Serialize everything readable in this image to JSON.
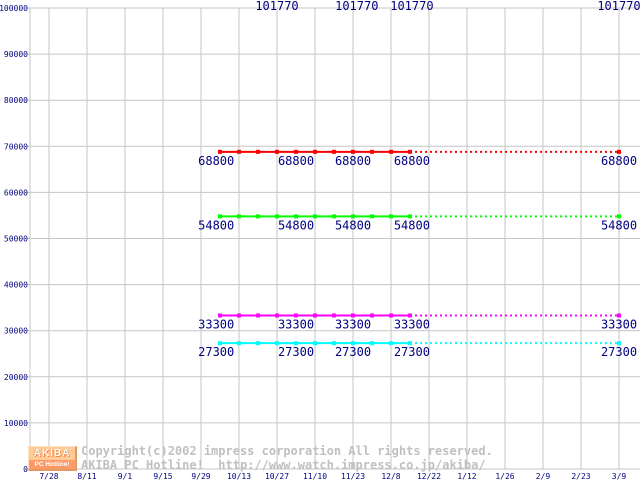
{
  "chart_data": {
    "type": "line",
    "title": "",
    "xlabel": "",
    "ylabel": "",
    "grid": true,
    "legend": "none",
    "y_axis": {
      "min": 0,
      "max": 100000,
      "tick_step": 10000,
      "tick_labels": [
        "0",
        "10000",
        "20000",
        "30000",
        "40000",
        "50000",
        "60000",
        "70000",
        "80000",
        "90000",
        "100000"
      ]
    },
    "x_axis": {
      "tick_labels": [
        "7/28",
        "8/11",
        "9/1",
        "9/15",
        "9/29",
        "10/13",
        "10/27",
        "11/10",
        "11/23",
        "12/8",
        "12/22",
        "1/12",
        "1/26",
        "2/9",
        "2/23",
        "3/9"
      ]
    },
    "series": [
      {
        "name": "price-101770",
        "label": "101770",
        "price": 101770,
        "color": "#000080",
        "line_visible": false,
        "off_scale": true,
        "label_ticks": [
          6.0,
          8.1,
          9.55,
          15.0
        ]
      },
      {
        "name": "price-68800",
        "label": "68800",
        "price": 68800,
        "color": "#ff0000",
        "line_visible": true,
        "solid_ticks": [
          4.5,
          9.5
        ],
        "dotted_ticks": [
          9.5,
          15.0
        ],
        "marker_step": 0.5,
        "label_ticks": [
          4.4,
          6.5,
          8.0,
          9.55,
          15.0
        ]
      },
      {
        "name": "price-54800",
        "label": "54800",
        "price": 54800,
        "color": "#00ff00",
        "line_visible": true,
        "solid_ticks": [
          4.5,
          9.5
        ],
        "dotted_ticks": [
          9.5,
          15.0
        ],
        "marker_step": 0.5,
        "label_ticks": [
          4.4,
          6.5,
          8.0,
          9.55,
          15.0
        ]
      },
      {
        "name": "price-33300",
        "label": "33300",
        "price": 33300,
        "color": "#ff00ff",
        "line_visible": true,
        "solid_ticks": [
          4.5,
          9.5
        ],
        "dotted_ticks": [
          9.5,
          15.0
        ],
        "marker_step": 0.5,
        "label_ticks": [
          4.4,
          6.5,
          8.0,
          9.55,
          15.0
        ]
      },
      {
        "name": "price-27300",
        "label": "27300",
        "price": 27300,
        "color": "#00ffff",
        "line_visible": true,
        "solid_ticks": [
          4.5,
          9.5
        ],
        "dotted_ticks": [
          9.5,
          15.0
        ],
        "marker_step": 0.5,
        "label_ticks": [
          4.4,
          6.5,
          8.0,
          9.55,
          15.0
        ]
      }
    ]
  },
  "colors": {
    "background": "#ffffff",
    "grid": "#c6c6c6",
    "plot_label": "#000080",
    "copyright_text": "#c0c0c0",
    "logo_bg": "#ffcc99",
    "logo_bar_bg": "#ff9966",
    "logo_text": "#ffffff"
  },
  "footer": {
    "logo": {
      "line1": "AKIBA",
      "line2": "PC Hotline!"
    },
    "copyright_line1": "Copyright(c)2002 impress corporation All rights reserved.",
    "copyright_line2": "AKIBA PC Hotline!  http://www.watch.impress.co.jp/akiba/"
  }
}
